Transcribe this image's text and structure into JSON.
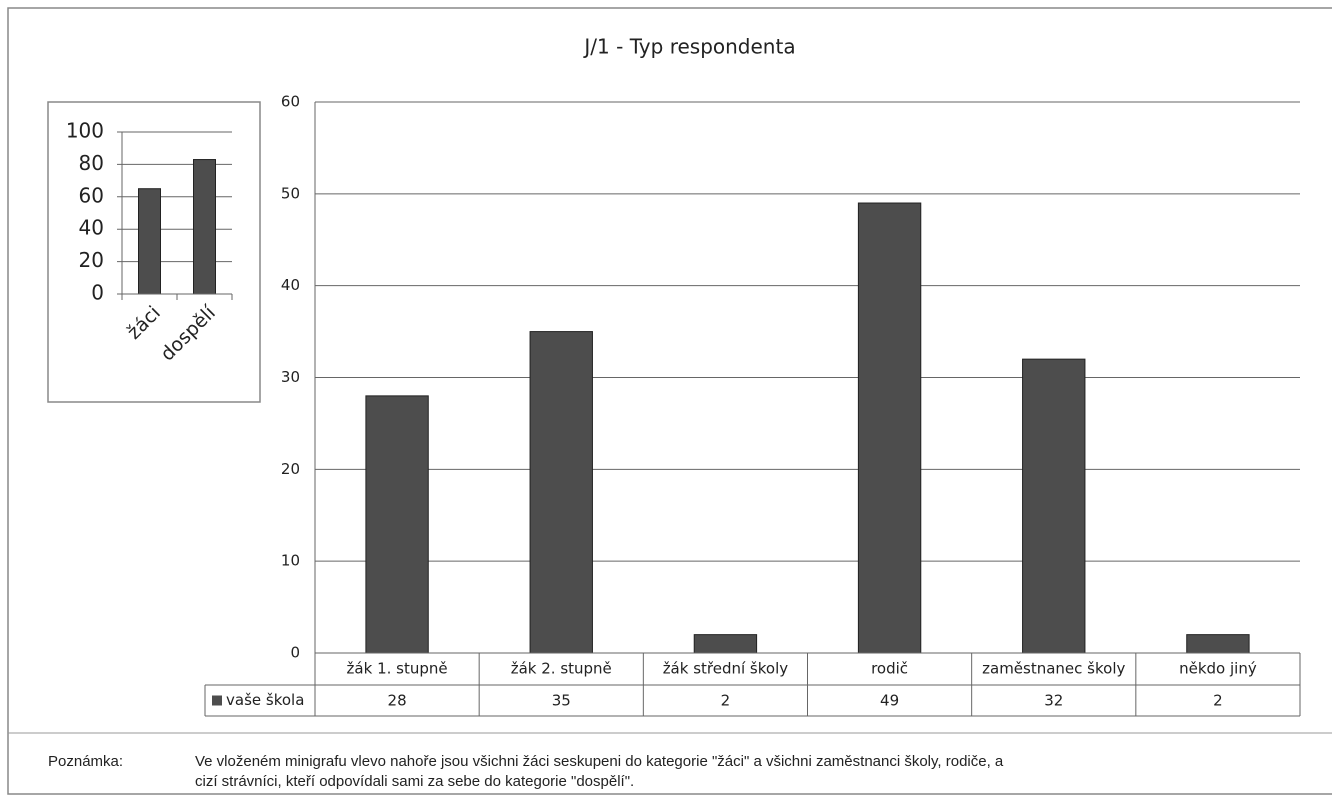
{
  "chart_data": [
    {
      "type": "bar",
      "title": "J/1 - Typ respondenta",
      "categories": [
        "žák 1. stupně",
        "žák 2. stupně",
        "žák střední školy",
        "rodič",
        "zaměstnanec školy",
        "někdo jiný"
      ],
      "series": [
        {
          "name": "vaše škola",
          "color": "#4d4d4d",
          "values": [
            28,
            35,
            2,
            49,
            32,
            2
          ]
        }
      ],
      "ylim": [
        0,
        60
      ],
      "yticks": [
        0,
        10,
        20,
        30,
        40,
        50,
        60
      ],
      "grid": true,
      "data_table": true
    },
    {
      "type": "bar",
      "categories": [
        "žáci",
        "dospělí"
      ],
      "values": [
        65,
        83
      ],
      "color": "#4d4d4d",
      "ylim": [
        0,
        100
      ],
      "yticks": [
        0,
        20,
        40,
        60,
        80,
        100
      ],
      "grid": true
    }
  ],
  "note": {
    "label": "Poznámka:",
    "lines": [
      "Ve vloženém minigrafu vlevo nahoře jsou všichni žáci seskupeni do kategorie \"žáci\" a všichni zaměstnanci školy, rodiče, a",
      "cizí strávníci, kteří odpovídali sami za sebe do kategorie \"dospělí\"."
    ]
  }
}
